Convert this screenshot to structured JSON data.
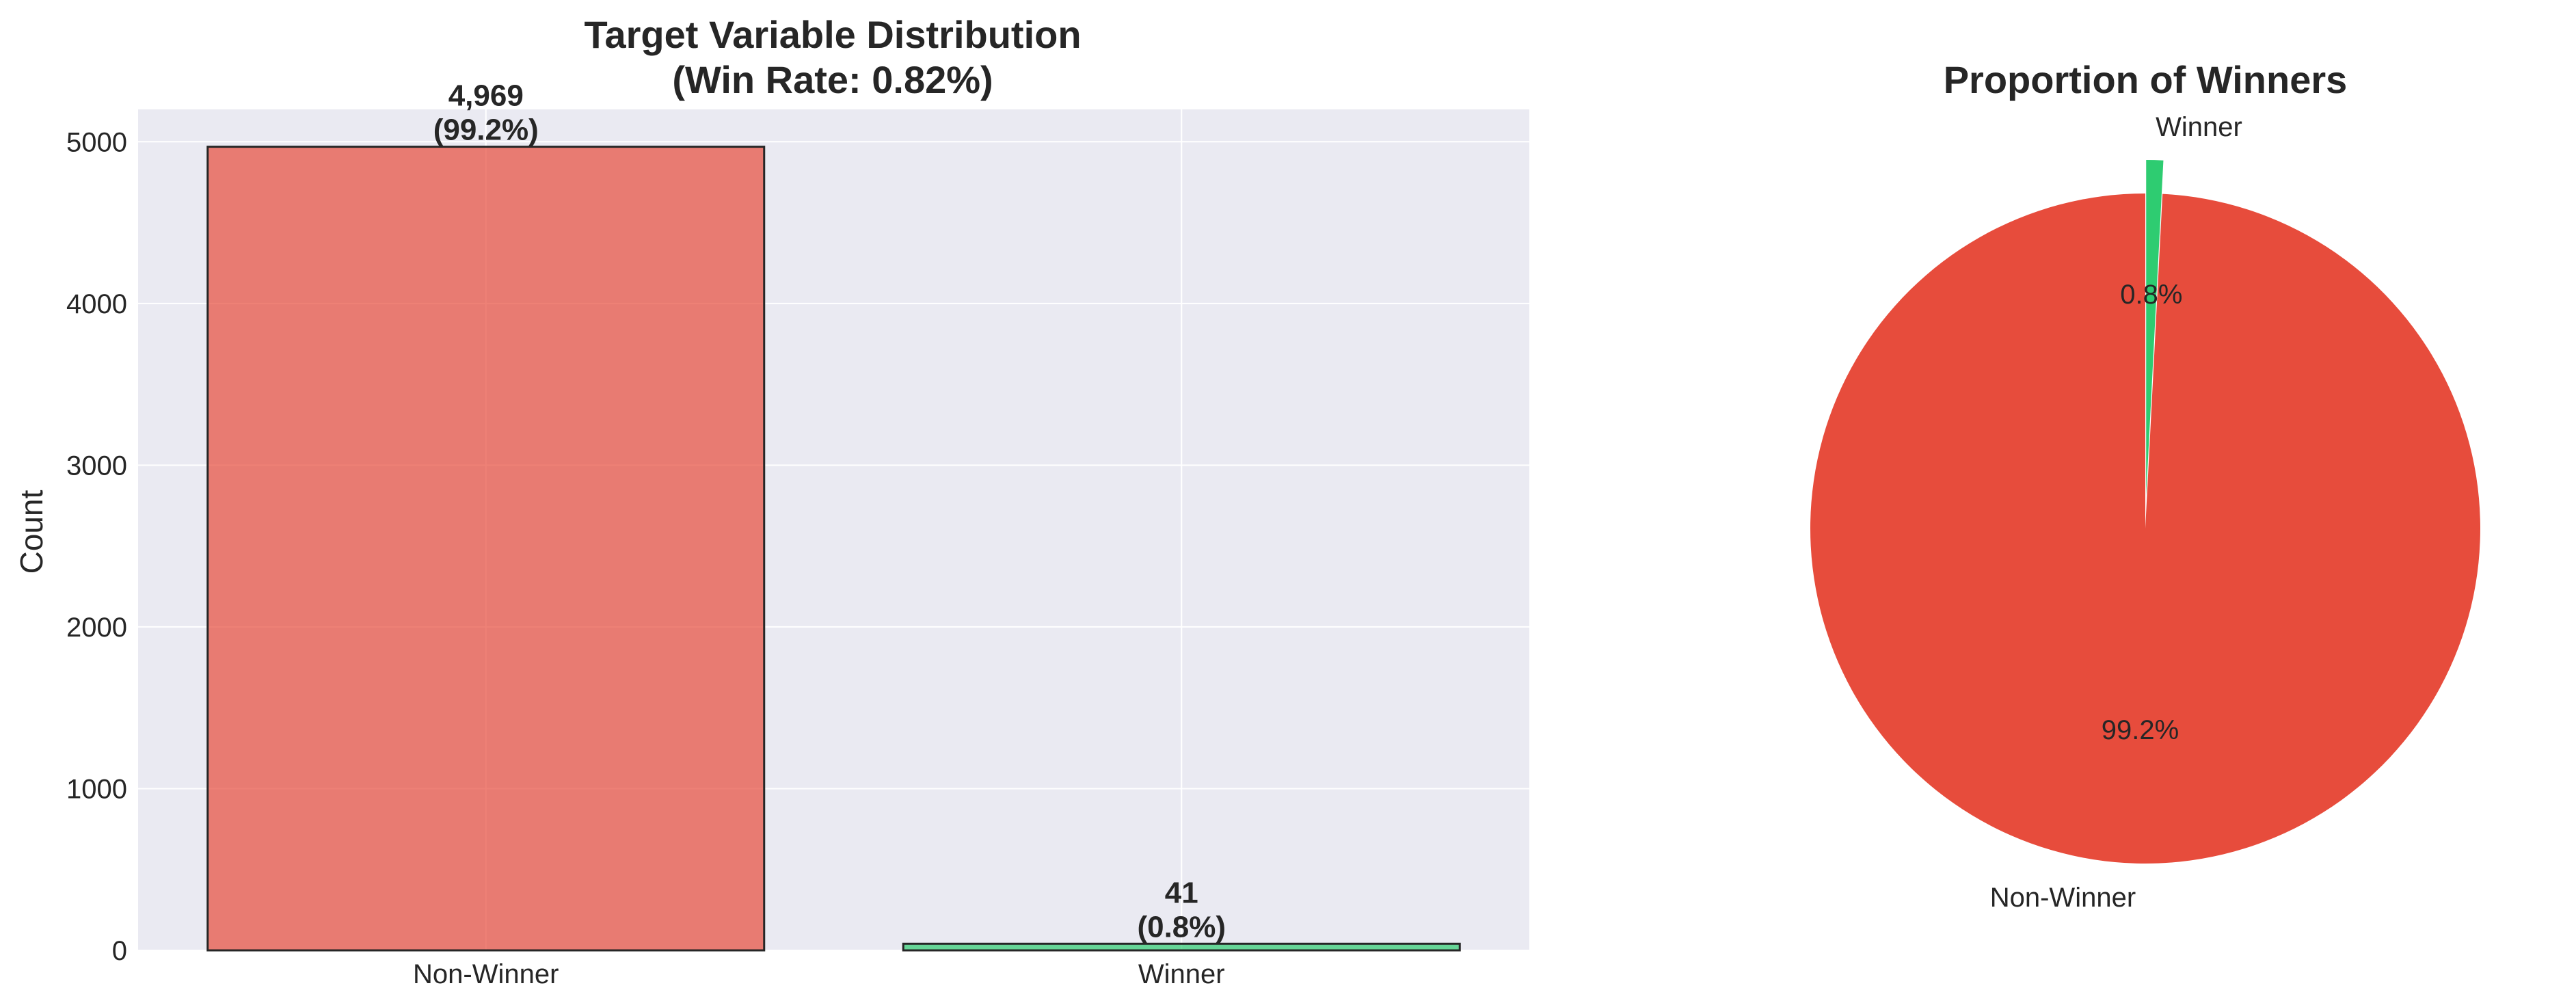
{
  "chart_data": [
    {
      "type": "bar",
      "title_line1": "Target Variable Distribution",
      "title_line2": "(Win Rate: 0.82%)",
      "xlabel": "",
      "ylabel": "Count",
      "ylim": [
        0,
        5200
      ],
      "yticks": [
        0,
        1000,
        2000,
        3000,
        4000,
        5000
      ],
      "categories": [
        "Non-Winner",
        "Winner"
      ],
      "values": [
        4969,
        41
      ],
      "value_labels": [
        "4,969",
        "41"
      ],
      "percent_labels": [
        "(99.2%)",
        "(0.8%)"
      ],
      "colors": [
        "#e74c3c",
        "#2ecc71"
      ],
      "grid": true,
      "background": "#eaeaf2"
    },
    {
      "type": "pie",
      "title": "Proportion of Winners",
      "labels": [
        "Non-Winner",
        "Winner"
      ],
      "values": [
        4969,
        41
      ],
      "percent_labels": [
        "99.2%",
        "0.8%"
      ],
      "colors": [
        "#e74c3c",
        "#2ecc71"
      ],
      "explode": [
        0,
        0.1
      ],
      "start_angle": 90
    }
  ]
}
